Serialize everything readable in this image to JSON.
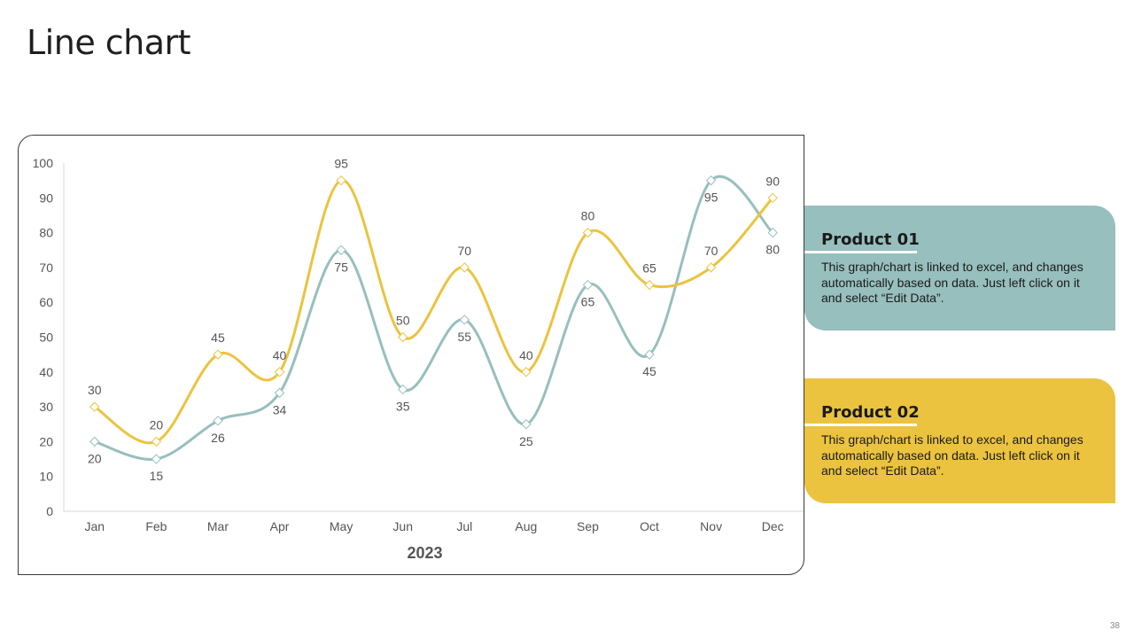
{
  "page": {
    "title": "Line chart",
    "page_number": "38"
  },
  "colors": {
    "product01": "#97BFBD",
    "product02": "#EBC33F",
    "axis": "#D9D9D9",
    "label": "#555555"
  },
  "cards": [
    {
      "title": "Product 01",
      "desc": "This graph/chart is linked to excel, and changes automatically based on data. Just left click on it and select “Edit Data”."
    },
    {
      "title": "Product 02",
      "desc": "This graph/chart is linked to excel, and changes automatically based on data. Just left click on it and select “Edit Data”."
    }
  ],
  "chart_data": {
    "type": "line",
    "title": "",
    "xlabel": "2023",
    "ylabel": "",
    "ylim": [
      0,
      100
    ],
    "yticks": [
      0,
      10,
      20,
      30,
      40,
      50,
      60,
      70,
      80,
      90,
      100
    ],
    "categories": [
      "Jan",
      "Feb",
      "Mar",
      "Apr",
      "May",
      "Jun",
      "Jul",
      "Aug",
      "Sep",
      "Oct",
      "Nov",
      "Dec"
    ],
    "series": [
      {
        "name": "Product 01",
        "color": "#97BFBD",
        "label_position": "below",
        "values": [
          20,
          15,
          26,
          34,
          75,
          35,
          55,
          25,
          65,
          45,
          95,
          80
        ]
      },
      {
        "name": "Product 02",
        "color": "#EBC33F",
        "label_position": "above",
        "values": [
          30,
          20,
          45,
          40,
          95,
          50,
          70,
          40,
          80,
          65,
          70,
          90
        ]
      }
    ],
    "smooth": true,
    "markers": "diamond",
    "grid": false
  }
}
